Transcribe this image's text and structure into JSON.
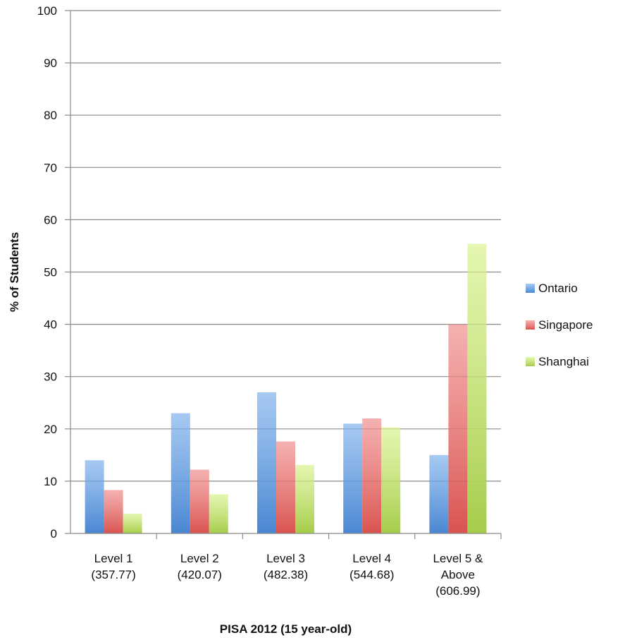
{
  "chart_data": {
    "type": "bar",
    "title": "",
    "xlabel": "PISA 2012 (15 year-old)",
    "ylabel": "% of Students",
    "ylim": [
      0,
      100
    ],
    "yticks": [
      "0",
      "10",
      "20",
      "30",
      "40",
      "50",
      "60",
      "70",
      "80",
      "90",
      "100"
    ],
    "grid": true,
    "legend_position": "right",
    "categories": [
      [
        "Level 1",
        "(357.77)"
      ],
      [
        "Level 2",
        "(420.07)"
      ],
      [
        "Level 3",
        "(482.38)"
      ],
      [
        "Level 4",
        "(544.68)"
      ],
      [
        "Level 5 &",
        "Above",
        "(606.99)"
      ]
    ],
    "series": [
      {
        "name": "Ontario",
        "color": "#7fb2ec",
        "color_dark": "#4a86d2",
        "values": [
          14,
          23,
          27,
          21,
          15
        ]
      },
      {
        "name": "Singapore",
        "color": "#f08f8f",
        "color_dark": "#d9534f",
        "values": [
          8.3,
          12.2,
          17.6,
          22,
          40
        ]
      },
      {
        "name": "Shanghai",
        "color": "#d9f28f",
        "color_dark": "#a5cc4a",
        "values": [
          3.8,
          7.5,
          13.1,
          20.3,
          55.4
        ]
      }
    ]
  }
}
